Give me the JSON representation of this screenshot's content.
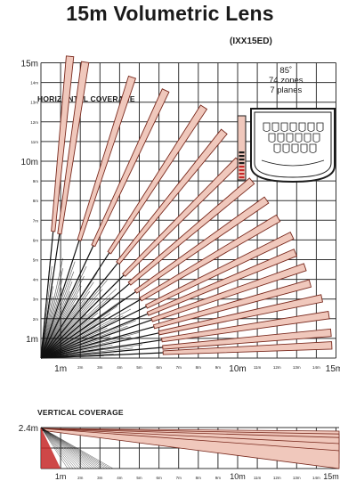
{
  "title": "15m Volumetric Lens",
  "model": "(IXX15ED)",
  "specs": {
    "angle": "85˚",
    "zones": "74 zones",
    "planes": "7 planes"
  },
  "horizontal": {
    "label": "HORIZONTAL COVERAGE",
    "y_ticks": [
      "1m",
      "2m",
      "3m",
      "4m",
      "5m",
      "6m",
      "7m",
      "8m",
      "9m",
      "10m",
      "11m",
      "12m",
      "13m",
      "14m",
      "15m"
    ],
    "x_ticks": [
      "1m",
      "2m",
      "3m",
      "4m",
      "5m",
      "6m",
      "7m",
      "8m",
      "9m",
      "10m",
      "11m",
      "12m",
      "13m",
      "14m",
      "15m"
    ]
  },
  "vertical": {
    "label": "VERTICAL COVERAGE",
    "y_tick": "2.4m",
    "x_ticks": [
      "1m",
      "2m",
      "3m",
      "4m",
      "5m",
      "6m",
      "7m",
      "8m",
      "9m",
      "10m",
      "11m",
      "12m",
      "13m",
      "14m",
      "15m"
    ]
  },
  "colors": {
    "beam": "#f0c8bc",
    "beam_edge": "#7a2a1e",
    "grid": "#333333",
    "dark_zone": "#c62828"
  }
}
